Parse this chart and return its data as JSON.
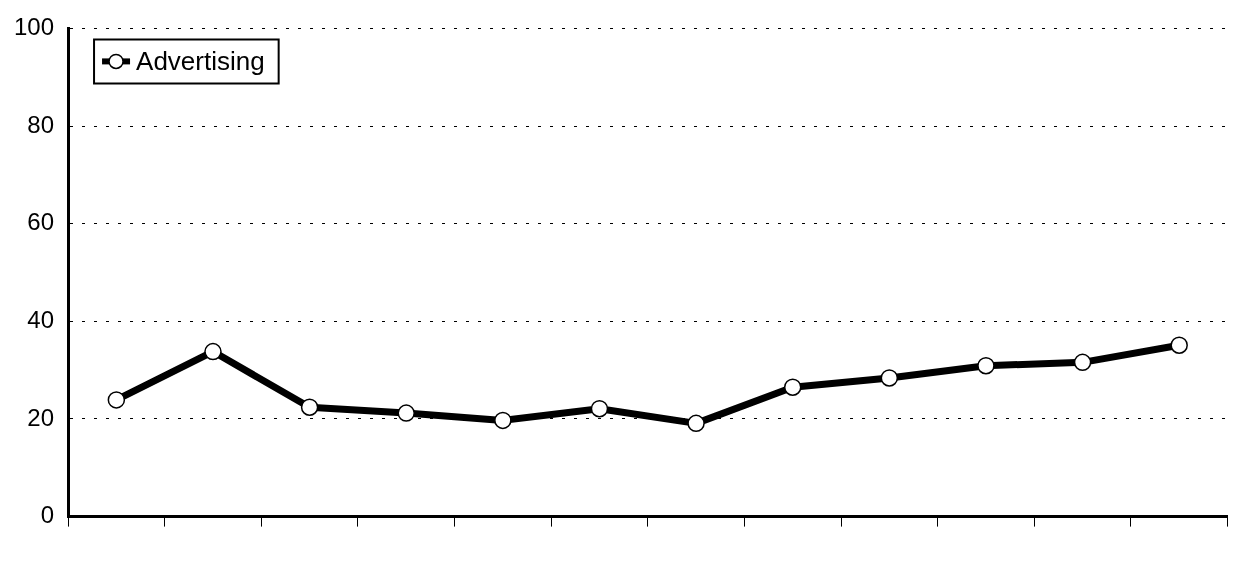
{
  "chart_data": {
    "type": "line",
    "categories": [
      null,
      null,
      null,
      null,
      null,
      null,
      null,
      null,
      null,
      null,
      null,
      null
    ],
    "series": [
      {
        "name": "Advertising",
        "color": "#000000",
        "values": [
          23.9,
          33.8,
          22.4,
          21.2,
          19.7,
          22.1,
          19.1,
          26.5,
          28.4,
          30.9,
          31.6,
          35.1
        ]
      }
    ],
    "ylim": [
      0,
      100
    ],
    "yticks": [
      0,
      20,
      40,
      60,
      80,
      100
    ],
    "grid": "y",
    "legend": "top left",
    "marker": "circle",
    "line_style": "solid"
  }
}
